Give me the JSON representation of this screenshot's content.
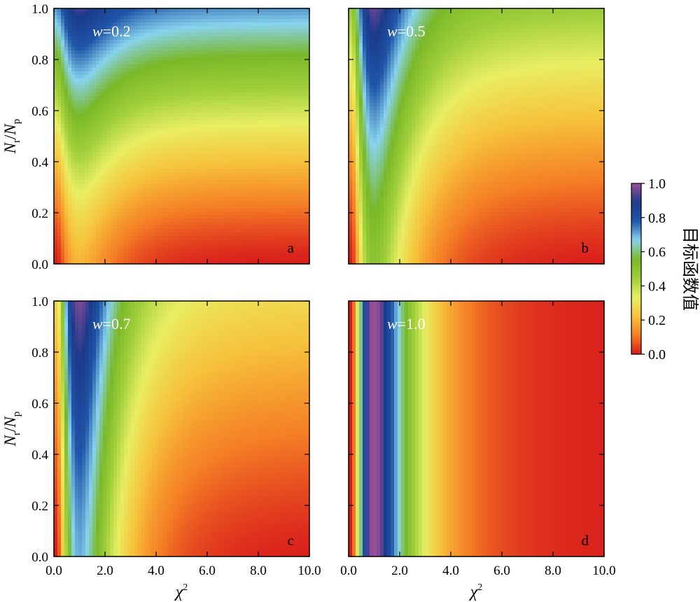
{
  "chart_data": {
    "type": "heatmap",
    "panels": [
      {
        "id": "a",
        "letter": "a",
        "title": "w=0.2",
        "w": 0.2
      },
      {
        "id": "b",
        "letter": "b",
        "title": "w=0.5",
        "w": 0.5
      },
      {
        "id": "c",
        "letter": "c",
        "title": "w=0.7",
        "w": 0.7
      },
      {
        "id": "d",
        "letter": "d",
        "title": "w=1.0",
        "w": 1.0
      }
    ],
    "xlabel": "χ²",
    "ylabel": "Nr/Np",
    "xlim": [
      0,
      10
    ],
    "ylim": [
      0,
      1
    ],
    "x_ticks": [
      "0.0",
      "2.0",
      "4.0",
      "6.0",
      "8.0",
      "10.0"
    ],
    "y_ticks": [
      "0.0",
      "0.2",
      "0.4",
      "0.6",
      "0.8",
      "1.0"
    ],
    "colorbar": {
      "title": "目标函数值",
      "range": [
        0,
        1
      ],
      "ticks": [
        "0.0",
        "0.2",
        "0.4",
        "0.6",
        "0.8",
        "1.0"
      ],
      "colors": [
        "#d81b1b",
        "#f57f25",
        "#f6c33c",
        "#e9ee63",
        "#9fcf3a",
        "#7ab828",
        "#88d3ee",
        "#1f55a8",
        "#1b3a8b",
        "#9c4f9b"
      ]
    }
  }
}
